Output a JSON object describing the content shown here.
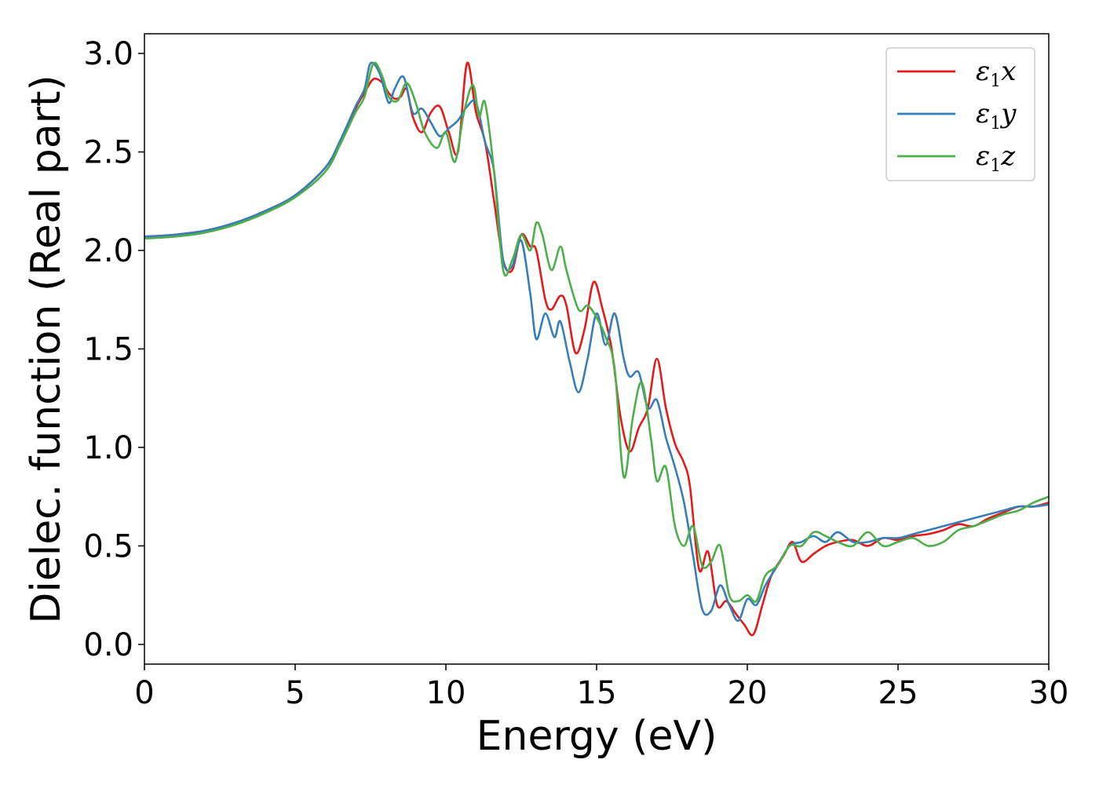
{
  "chart_data": {
    "type": "line",
    "xlabel": "Energy (eV)",
    "ylabel": "Dielec. function (Real part)",
    "xlim": [
      0,
      30
    ],
    "ylim": [
      -0.1,
      3.1
    ],
    "xticks": [
      0,
      5,
      10,
      15,
      20,
      25,
      30
    ],
    "xtick_labels": [
      "0",
      "5",
      "10",
      "15",
      "20",
      "25",
      "30"
    ],
    "yticks": [
      0.0,
      0.5,
      1.0,
      1.5,
      2.0,
      2.5,
      3.0
    ],
    "ytick_labels": [
      "0.0",
      "0.5",
      "1.0",
      "1.5",
      "2.0",
      "2.5",
      "3.0"
    ],
    "grid": false,
    "legend_position": "top-right",
    "series": [
      {
        "name": "ε1x",
        "symbol": "ε",
        "subscript": "1",
        "suffix": "x",
        "color": "#e41a1c",
        "points": [
          [
            0,
            2.07
          ],
          [
            1,
            2.08
          ],
          [
            2,
            2.1
          ],
          [
            3,
            2.14
          ],
          [
            4,
            2.2
          ],
          [
            5,
            2.28
          ],
          [
            6,
            2.42
          ],
          [
            6.5,
            2.55
          ],
          [
            7,
            2.72
          ],
          [
            7.3,
            2.8
          ],
          [
            7.6,
            2.87
          ],
          [
            7.9,
            2.85
          ],
          [
            8.1,
            2.8
          ],
          [
            8.3,
            2.77
          ],
          [
            8.5,
            2.78
          ],
          [
            8.7,
            2.82
          ],
          [
            8.9,
            2.68
          ],
          [
            9.2,
            2.6
          ],
          [
            9.5,
            2.7
          ],
          [
            9.8,
            2.73
          ],
          [
            10.1,
            2.6
          ],
          [
            10.4,
            2.5
          ],
          [
            10.7,
            2.95
          ],
          [
            11.0,
            2.7
          ],
          [
            11.3,
            2.55
          ],
          [
            11.6,
            2.25
          ],
          [
            11.9,
            1.95
          ],
          [
            12.2,
            1.9
          ],
          [
            12.5,
            2.08
          ],
          [
            12.8,
            2.02
          ],
          [
            13.0,
            2.0
          ],
          [
            13.3,
            1.75
          ],
          [
            13.5,
            1.7
          ],
          [
            13.8,
            1.77
          ],
          [
            14.0,
            1.72
          ],
          [
            14.3,
            1.48
          ],
          [
            14.6,
            1.6
          ],
          [
            14.9,
            1.84
          ],
          [
            15.2,
            1.7
          ],
          [
            15.5,
            1.5
          ],
          [
            15.8,
            1.15
          ],
          [
            16.1,
            0.98
          ],
          [
            16.4,
            1.1
          ],
          [
            16.7,
            1.2
          ],
          [
            17.0,
            1.45
          ],
          [
            17.3,
            1.2
          ],
          [
            17.6,
            1.02
          ],
          [
            17.9,
            0.92
          ],
          [
            18.1,
            0.8
          ],
          [
            18.4,
            0.38
          ],
          [
            18.7,
            0.47
          ],
          [
            19.0,
            0.2
          ],
          [
            19.3,
            0.22
          ],
          [
            19.6,
            0.16
          ],
          [
            19.9,
            0.1
          ],
          [
            20.2,
            0.05
          ],
          [
            20.5,
            0.2
          ],
          [
            20.8,
            0.35
          ],
          [
            21.2,
            0.45
          ],
          [
            21.5,
            0.52
          ],
          [
            21.8,
            0.42
          ],
          [
            22.2,
            0.46
          ],
          [
            22.6,
            0.5
          ],
          [
            23.0,
            0.52
          ],
          [
            23.5,
            0.53
          ],
          [
            24.0,
            0.5
          ],
          [
            24.5,
            0.54
          ],
          [
            25.0,
            0.53
          ],
          [
            25.5,
            0.55
          ],
          [
            26.0,
            0.56
          ],
          [
            26.5,
            0.58
          ],
          [
            27.0,
            0.61
          ],
          [
            27.5,
            0.6
          ],
          [
            28.0,
            0.64
          ],
          [
            28.5,
            0.67
          ],
          [
            29.0,
            0.7
          ],
          [
            29.5,
            0.7
          ],
          [
            30.0,
            0.72
          ]
        ]
      },
      {
        "name": "ε1y",
        "symbol": "ε",
        "subscript": "1",
        "suffix": "y",
        "color": "#377eb8",
        "points": [
          [
            0,
            2.07
          ],
          [
            1,
            2.08
          ],
          [
            2,
            2.1
          ],
          [
            3,
            2.14
          ],
          [
            4,
            2.2
          ],
          [
            5,
            2.28
          ],
          [
            6,
            2.42
          ],
          [
            6.5,
            2.56
          ],
          [
            7,
            2.73
          ],
          [
            7.3,
            2.82
          ],
          [
            7.5,
            2.95
          ],
          [
            7.8,
            2.9
          ],
          [
            8.1,
            2.75
          ],
          [
            8.3,
            2.82
          ],
          [
            8.6,
            2.88
          ],
          [
            8.9,
            2.7
          ],
          [
            9.2,
            2.72
          ],
          [
            9.5,
            2.65
          ],
          [
            9.8,
            2.58
          ],
          [
            10.1,
            2.62
          ],
          [
            10.4,
            2.66
          ],
          [
            10.7,
            2.73
          ],
          [
            11.0,
            2.75
          ],
          [
            11.3,
            2.55
          ],
          [
            11.6,
            2.4
          ],
          [
            11.9,
            1.95
          ],
          [
            12.2,
            1.92
          ],
          [
            12.5,
            2.05
          ],
          [
            12.8,
            1.78
          ],
          [
            13.0,
            1.55
          ],
          [
            13.3,
            1.68
          ],
          [
            13.6,
            1.56
          ],
          [
            13.8,
            1.64
          ],
          [
            14.1,
            1.44
          ],
          [
            14.4,
            1.28
          ],
          [
            14.7,
            1.45
          ],
          [
            15.0,
            1.68
          ],
          [
            15.3,
            1.52
          ],
          [
            15.6,
            1.68
          ],
          [
            15.9,
            1.45
          ],
          [
            16.1,
            1.36
          ],
          [
            16.4,
            1.38
          ],
          [
            16.7,
            1.2
          ],
          [
            17.0,
            1.24
          ],
          [
            17.3,
            1.05
          ],
          [
            17.6,
            0.9
          ],
          [
            17.9,
            0.72
          ],
          [
            18.2,
            0.45
          ],
          [
            18.5,
            0.18
          ],
          [
            18.8,
            0.17
          ],
          [
            19.1,
            0.3
          ],
          [
            19.4,
            0.2
          ],
          [
            19.7,
            0.12
          ],
          [
            20.0,
            0.23
          ],
          [
            20.3,
            0.2
          ],
          [
            20.6,
            0.3
          ],
          [
            21.0,
            0.4
          ],
          [
            21.4,
            0.5
          ],
          [
            21.8,
            0.52
          ],
          [
            22.2,
            0.55
          ],
          [
            22.6,
            0.52
          ],
          [
            23.0,
            0.57
          ],
          [
            23.5,
            0.52
          ],
          [
            24.0,
            0.52
          ],
          [
            24.5,
            0.54
          ],
          [
            25.0,
            0.54
          ],
          [
            25.5,
            0.56
          ],
          [
            26.0,
            0.58
          ],
          [
            26.5,
            0.6
          ],
          [
            27.0,
            0.62
          ],
          [
            27.5,
            0.64
          ],
          [
            28.0,
            0.66
          ],
          [
            28.5,
            0.68
          ],
          [
            29.0,
            0.7
          ],
          [
            29.5,
            0.7
          ],
          [
            30.0,
            0.71
          ]
        ]
      },
      {
        "name": "ε1z",
        "symbol": "ε",
        "subscript": "1",
        "suffix": "z",
        "color": "#4daf4a",
        "points": [
          [
            0,
            2.06
          ],
          [
            1,
            2.07
          ],
          [
            2,
            2.09
          ],
          [
            3,
            2.13
          ],
          [
            4,
            2.19
          ],
          [
            5,
            2.27
          ],
          [
            6,
            2.4
          ],
          [
            6.5,
            2.54
          ],
          [
            7,
            2.7
          ],
          [
            7.3,
            2.78
          ],
          [
            7.6,
            2.95
          ],
          [
            7.9,
            2.88
          ],
          [
            8.1,
            2.78
          ],
          [
            8.4,
            2.76
          ],
          [
            8.7,
            2.85
          ],
          [
            9.0,
            2.75
          ],
          [
            9.3,
            2.6
          ],
          [
            9.7,
            2.52
          ],
          [
            10.0,
            2.6
          ],
          [
            10.3,
            2.45
          ],
          [
            10.6,
            2.7
          ],
          [
            10.9,
            2.84
          ],
          [
            11.1,
            2.68
          ],
          [
            11.3,
            2.75
          ],
          [
            11.6,
            2.4
          ],
          [
            11.9,
            1.9
          ],
          [
            12.2,
            1.95
          ],
          [
            12.5,
            2.08
          ],
          [
            12.8,
            2.0
          ],
          [
            13.0,
            2.14
          ],
          [
            13.2,
            2.08
          ],
          [
            13.5,
            1.9
          ],
          [
            13.8,
            2.02
          ],
          [
            14.0,
            1.9
          ],
          [
            14.4,
            1.7
          ],
          [
            14.7,
            1.72
          ],
          [
            15.0,
            1.66
          ],
          [
            15.3,
            1.56
          ],
          [
            15.6,
            1.4
          ],
          [
            15.9,
            0.85
          ],
          [
            16.2,
            1.15
          ],
          [
            16.5,
            1.33
          ],
          [
            16.8,
            1.05
          ],
          [
            17.0,
            0.83
          ],
          [
            17.3,
            0.9
          ],
          [
            17.6,
            0.6
          ],
          [
            17.9,
            0.5
          ],
          [
            18.2,
            0.6
          ],
          [
            18.5,
            0.4
          ],
          [
            18.8,
            0.42
          ],
          [
            19.1,
            0.5
          ],
          [
            19.4,
            0.25
          ],
          [
            19.7,
            0.22
          ],
          [
            20.0,
            0.25
          ],
          [
            20.3,
            0.22
          ],
          [
            20.6,
            0.35
          ],
          [
            21.0,
            0.4
          ],
          [
            21.4,
            0.5
          ],
          [
            21.8,
            0.5
          ],
          [
            22.2,
            0.57
          ],
          [
            22.6,
            0.55
          ],
          [
            23.0,
            0.52
          ],
          [
            23.5,
            0.5
          ],
          [
            24.0,
            0.57
          ],
          [
            24.5,
            0.5
          ],
          [
            25.0,
            0.52
          ],
          [
            25.5,
            0.54
          ],
          [
            26.0,
            0.5
          ],
          [
            26.5,
            0.52
          ],
          [
            27.0,
            0.58
          ],
          [
            27.5,
            0.6
          ],
          [
            28.0,
            0.63
          ],
          [
            28.5,
            0.66
          ],
          [
            29.0,
            0.68
          ],
          [
            29.5,
            0.72
          ],
          [
            30.0,
            0.75
          ]
        ]
      }
    ]
  }
}
